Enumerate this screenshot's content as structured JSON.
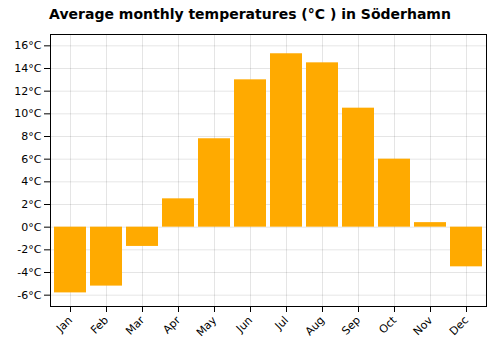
{
  "chart_data": {
    "type": "bar",
    "title": "Average monthly temperatures (°C ) in Söderhamn",
    "categories": [
      "Jan",
      "Feb",
      "Mar",
      "Apr",
      "May",
      "Jun",
      "Jul",
      "Aug",
      "Sep",
      "Oct",
      "Nov",
      "Dec"
    ],
    "values": [
      -5.8,
      -5.2,
      -1.7,
      2.5,
      7.8,
      13.0,
      15.3,
      14.5,
      10.5,
      6.0,
      0.4,
      -3.5
    ],
    "color": "#FFAA00",
    "ylim": [
      -7,
      17
    ],
    "yticks": [
      {
        "value": -6,
        "label": "-6°C"
      },
      {
        "value": -4,
        "label": "-4°C"
      },
      {
        "value": -2,
        "label": "-2°C"
      },
      {
        "value": 0,
        "label": "0°C"
      },
      {
        "value": 2,
        "label": "2°C"
      },
      {
        "value": 4,
        "label": "4°C"
      },
      {
        "value": 6,
        "label": "6°C"
      },
      {
        "value": 8,
        "label": "8°C"
      },
      {
        "value": 10,
        "label": "10°C"
      },
      {
        "value": 12,
        "label": "12°C"
      },
      {
        "value": 14,
        "label": "14°C"
      },
      {
        "value": 16,
        "label": "16°C"
      }
    ],
    "grid": true
  }
}
